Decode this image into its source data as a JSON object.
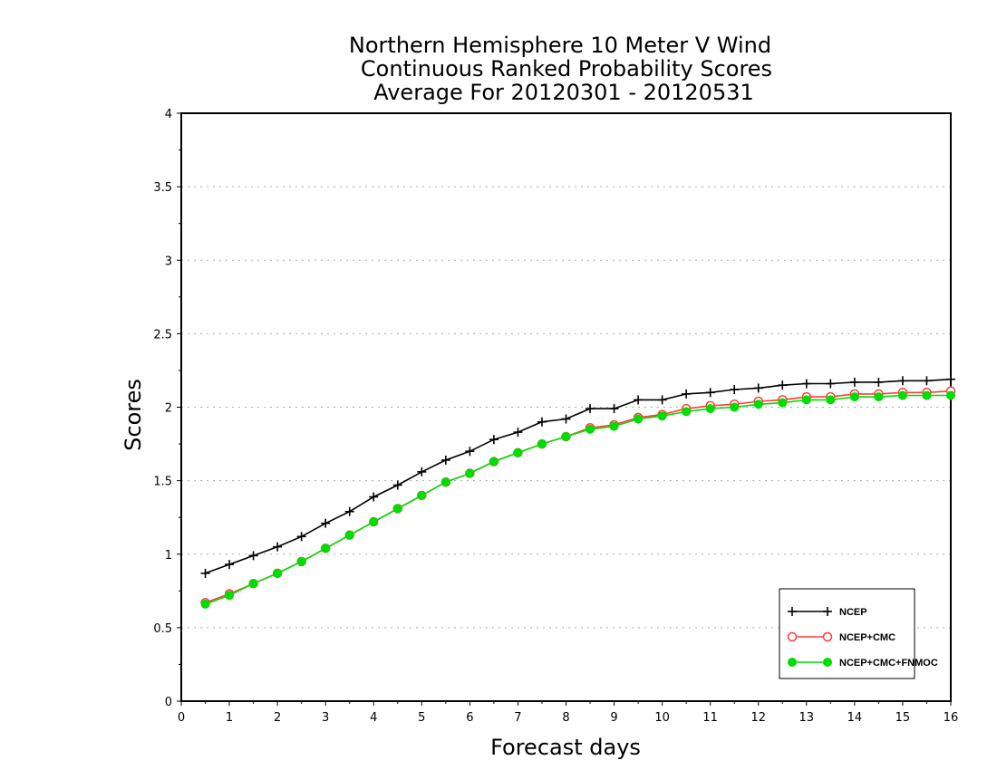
{
  "chart_data": {
    "type": "line",
    "title_lines": [
      "Northern Hemisphere 10 Meter V Wind",
      "Continuous Ranked Probability Scores",
      "Average For 20120301 - 20120531"
    ],
    "xlabel": "Forecast days",
    "ylabel": "Scores",
    "xlim": [
      0,
      16
    ],
    "ylim": [
      0,
      4
    ],
    "xticks": [
      "0",
      "1",
      "2",
      "3",
      "4",
      "5",
      "6",
      "7",
      "8",
      "9",
      "10",
      "11",
      "12",
      "13",
      "14",
      "15",
      "16"
    ],
    "yticks": [
      "0",
      "0.5",
      "1",
      "1.5",
      "2",
      "2.5",
      "3",
      "3.5",
      "4"
    ],
    "ytick_values": [
      0,
      0.5,
      1,
      1.5,
      2,
      2.5,
      3,
      3.5,
      4
    ],
    "grid": true,
    "legend_position": "bottom-right",
    "x": [
      0.5,
      1,
      1.5,
      2,
      2.5,
      3,
      3.5,
      4,
      4.5,
      5,
      5.5,
      6,
      6.5,
      7,
      7.5,
      8,
      8.5,
      9,
      9.5,
      10,
      10.5,
      11,
      11.5,
      12,
      12.5,
      13,
      13.5,
      14,
      14.5,
      15,
      15.5,
      16
    ],
    "series": [
      {
        "name": "NCEP",
        "color": "#000000",
        "marker": "plus",
        "values": [
          0.87,
          0.93,
          0.99,
          1.05,
          1.12,
          1.21,
          1.29,
          1.39,
          1.47,
          1.56,
          1.64,
          1.7,
          1.78,
          1.83,
          1.9,
          1.92,
          1.99,
          1.99,
          2.05,
          2.05,
          2.09,
          2.1,
          2.12,
          2.13,
          2.15,
          2.16,
          2.16,
          2.17,
          2.17,
          2.18,
          2.18,
          2.19
        ]
      },
      {
        "name": "NCEP+CMC",
        "color": "#ff3b3b",
        "marker": "open-circle",
        "values": [
          0.67,
          0.73,
          0.8,
          0.87,
          0.95,
          1.04,
          1.13,
          1.22,
          1.31,
          1.4,
          1.49,
          1.55,
          1.63,
          1.69,
          1.75,
          1.8,
          1.86,
          1.88,
          1.93,
          1.95,
          1.99,
          2.01,
          2.02,
          2.04,
          2.05,
          2.07,
          2.07,
          2.09,
          2.09,
          2.1,
          2.1,
          2.11
        ]
      },
      {
        "name": "NCEP+CMC+FNMOC",
        "color": "#00dd00",
        "marker": "filled-circle",
        "values": [
          0.66,
          0.72,
          0.8,
          0.87,
          0.95,
          1.04,
          1.13,
          1.22,
          1.31,
          1.4,
          1.49,
          1.55,
          1.63,
          1.69,
          1.75,
          1.8,
          1.85,
          1.87,
          1.92,
          1.94,
          1.97,
          1.99,
          2.0,
          2.02,
          2.03,
          2.05,
          2.05,
          2.07,
          2.07,
          2.08,
          2.08,
          2.08
        ]
      }
    ]
  }
}
